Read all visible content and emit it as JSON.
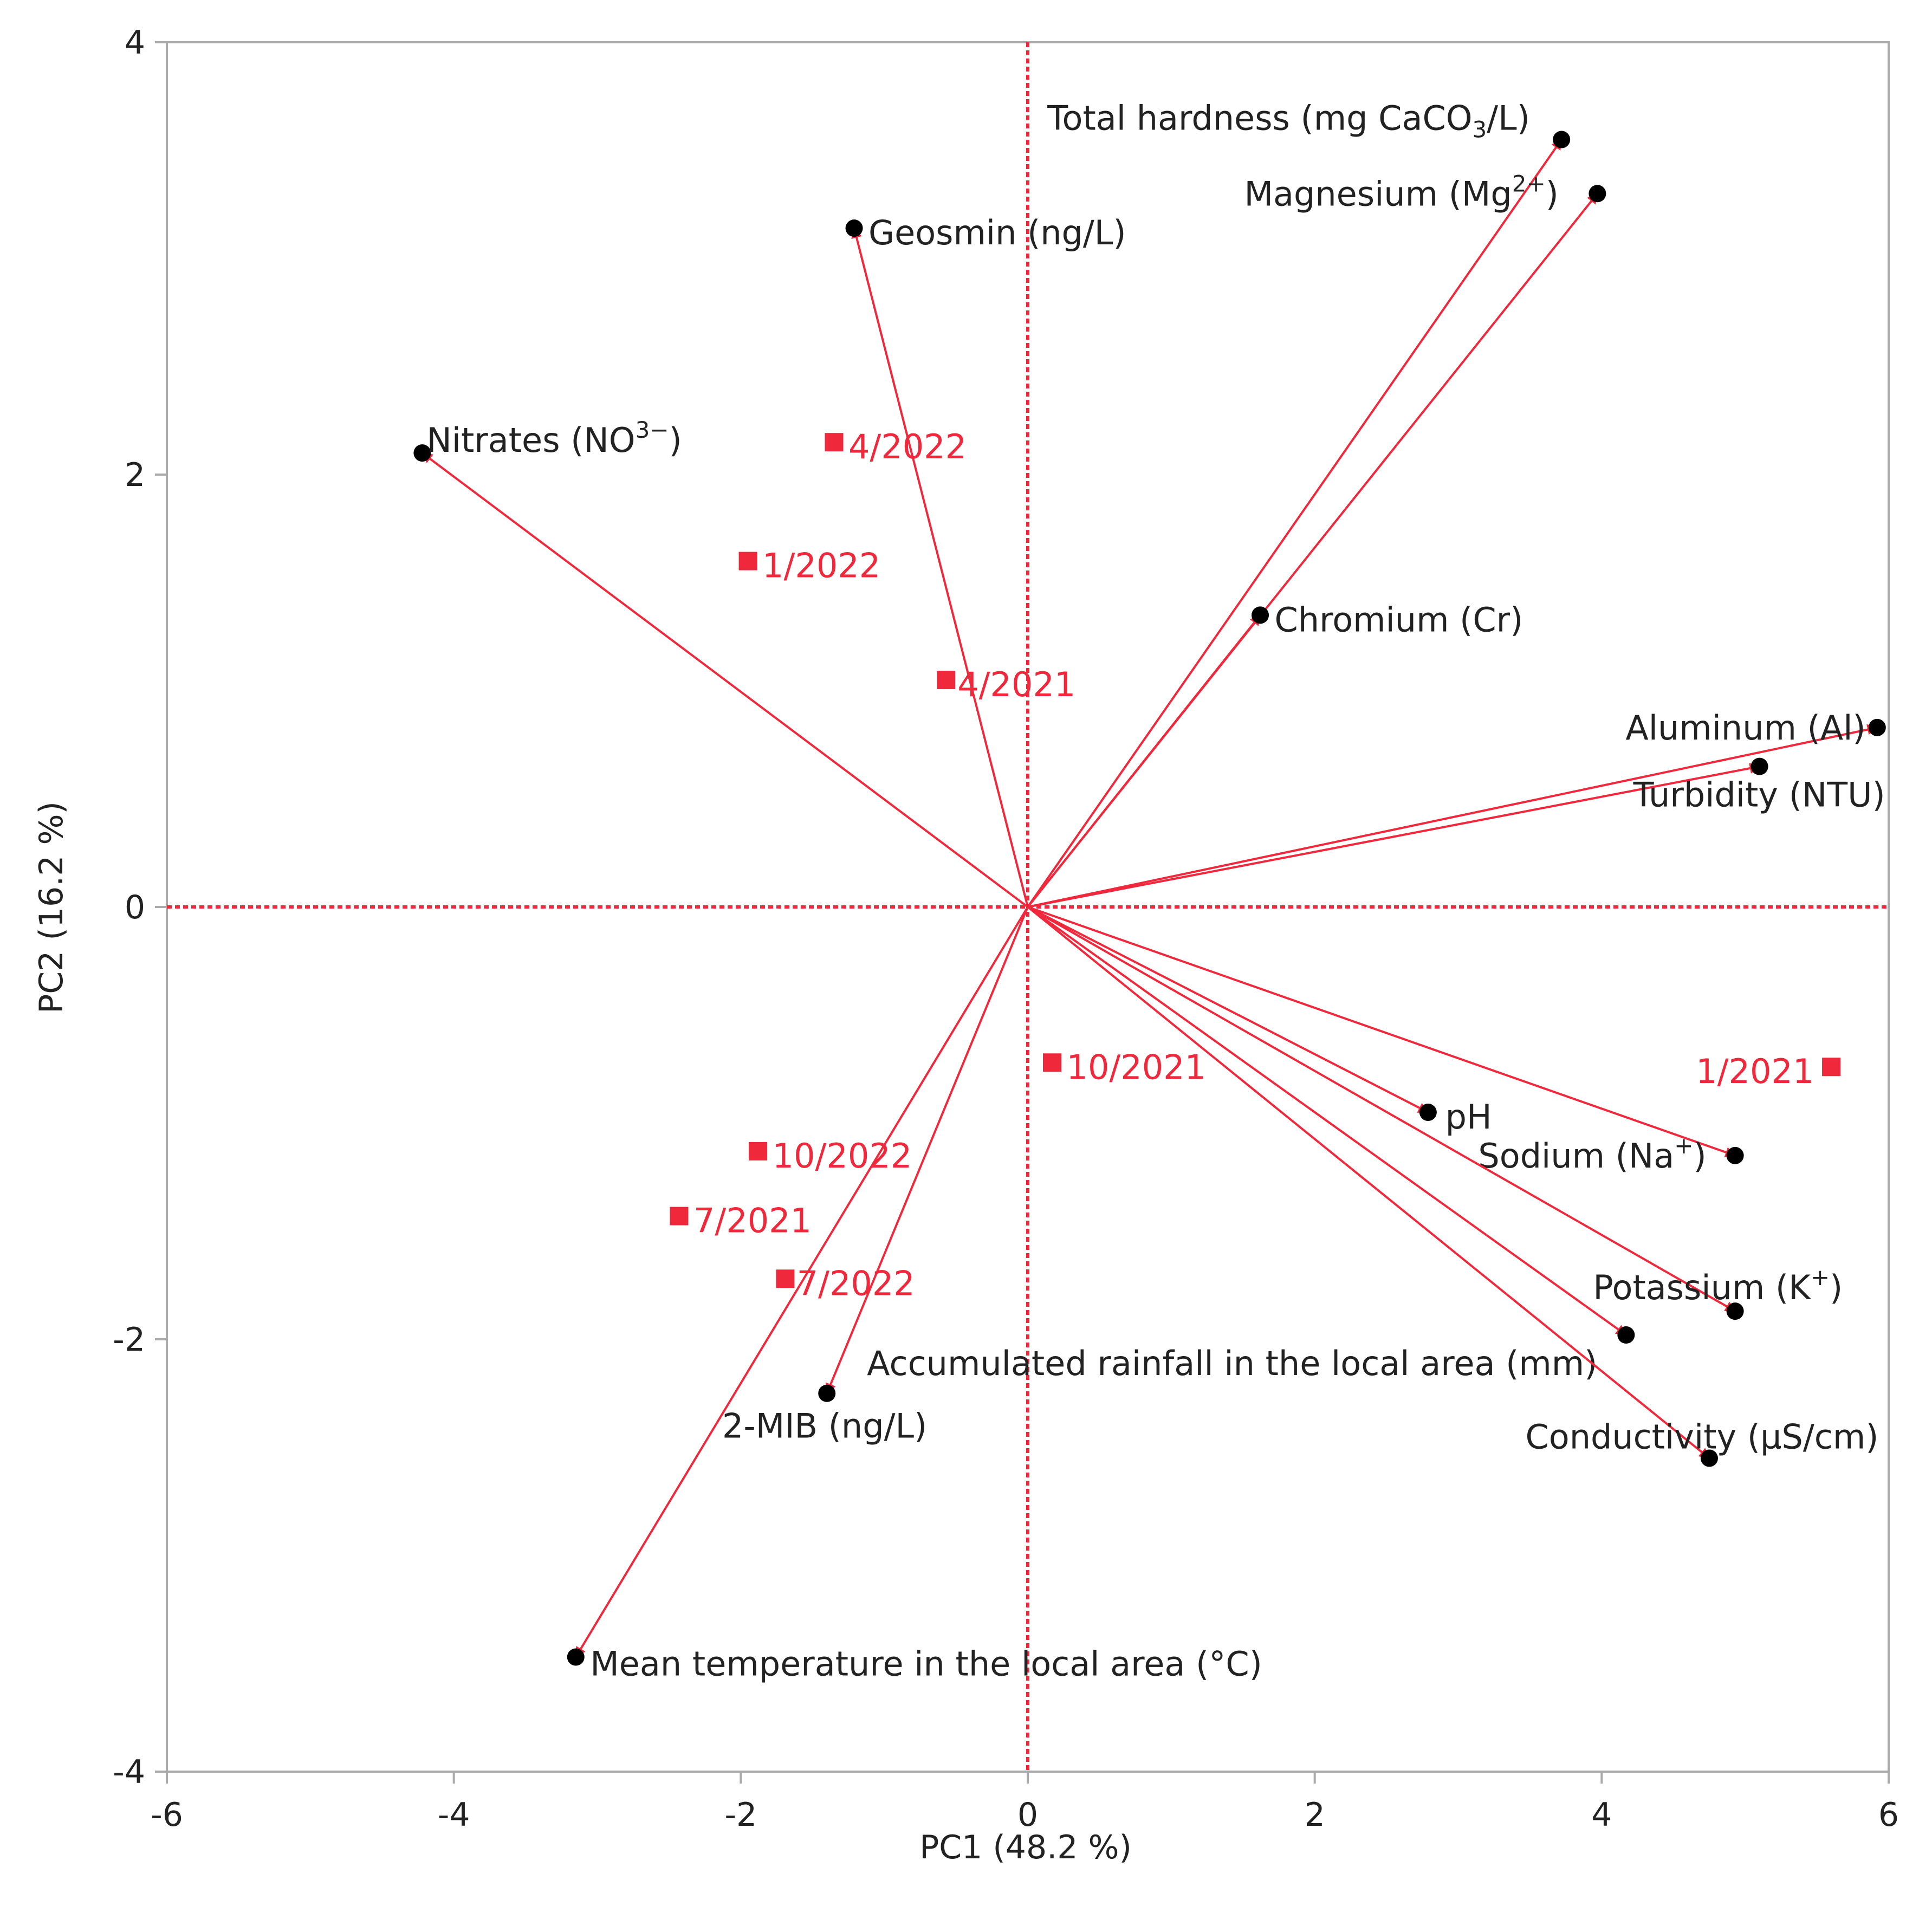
{
  "chart_data": {
    "type": "scatter",
    "subtype": "pca-biplot",
    "title": "",
    "xlabel": "PC1  (48.2 %)",
    "ylabel": "PC2  (16.2 %)",
    "xlim": [
      -6,
      6
    ],
    "ylim": [
      -4,
      4
    ],
    "xticks": [
      -6,
      -4,
      -2,
      0,
      2,
      4,
      6
    ],
    "yticks": [
      -4,
      -2,
      0,
      2,
      4
    ],
    "xtick_labels": [
      "-6",
      "-4",
      "-2",
      "0",
      "2",
      "4",
      "6"
    ],
    "ytick_labels": [
      "-4",
      "-2",
      "0",
      "2",
      "4"
    ],
    "colors": {
      "accent": "#f0283c",
      "point": "#000000",
      "axis": "#aaaaaa",
      "text": "#222222"
    },
    "loadings": [
      {
        "name": "Total hardness (mg CaCO3/L)",
        "x": 3.72,
        "y": 3.55,
        "label_anchor": "end",
        "label_dx": -0.22,
        "label_dy": 0.1
      },
      {
        "name": "Magnesium (Mg2+)",
        "x": 3.97,
        "y": 3.3,
        "label_anchor": "end",
        "label_dx": -0.27,
        "label_dy": 0.0
      },
      {
        "name": "Geosmin (ng/L)",
        "x": -1.21,
        "y": 3.14,
        "label_anchor": "start",
        "label_dx": 0.1,
        "label_dy": -0.02
      },
      {
        "name": "Nitrates (NO3−)",
        "x": -4.22,
        "y": 2.1,
        "label_anchor": "start",
        "label_dx": 0.03,
        "label_dy": 0.06
      },
      {
        "name": "Chromium (Cr)",
        "x": 1.62,
        "y": 1.35,
        "label_anchor": "start",
        "label_dx": 0.1,
        "label_dy": -0.02
      },
      {
        "name": "Aluminum (Al)",
        "x": 5.92,
        "y": 0.83,
        "label_anchor": "end",
        "label_dx": -0.08,
        "label_dy": 0.0
      },
      {
        "name": "Turbidity (NTU)",
        "x": 5.1,
        "y": 0.65,
        "label_anchor": "start",
        "label_dx": -0.88,
        "label_dy": -0.13
      },
      {
        "name": "pH",
        "x": 2.79,
        "y": -0.95,
        "label_anchor": "start",
        "label_dx": 0.12,
        "label_dy": -0.02
      },
      {
        "name": "Sodium (Na+)",
        "x": 4.93,
        "y": -1.15,
        "label_anchor": "end",
        "label_dx": -0.2,
        "label_dy": 0.0
      },
      {
        "name": "Potassium (K+)",
        "x": 4.93,
        "y": -1.87,
        "label_anchor": "end",
        "label_dx": 0.75,
        "label_dy": 0.11
      },
      {
        "name": "Accumulated rainfall in the local area (mm)",
        "x": 4.17,
        "y": -1.98,
        "label_anchor": "end",
        "label_dx": -0.2,
        "label_dy": -0.13
      },
      {
        "name": "2-MIB (ng/L)",
        "x": -1.4,
        "y": -2.25,
        "label_anchor": "start",
        "label_dx": -0.73,
        "label_dy": -0.15
      },
      {
        "name": "Conductivity (µS/cm)",
        "x": 4.75,
        "y": -2.55,
        "label_anchor": "end",
        "label_dx": 1.18,
        "label_dy": 0.1
      },
      {
        "name": "Mean temperature in the local area (°C)",
        "x": -3.15,
        "y": -3.47,
        "label_anchor": "start",
        "label_dx": 0.1,
        "label_dy": -0.03
      }
    ],
    "observations": [
      {
        "name": "4/2022",
        "x": -1.35,
        "y": 2.15,
        "label_anchor": "start",
        "label_dx": 0.1,
        "label_dy": -0.02
      },
      {
        "name": "1/2022",
        "x": -1.95,
        "y": 1.6,
        "label_anchor": "start",
        "label_dx": 0.1,
        "label_dy": -0.02
      },
      {
        "name": "4/2021",
        "x": -0.57,
        "y": 1.05,
        "label_anchor": "start",
        "label_dx": 0.08,
        "label_dy": -0.02
      },
      {
        "name": "10/2021",
        "x": 0.17,
        "y": -0.72,
        "label_anchor": "start",
        "label_dx": 0.1,
        "label_dy": -0.02
      },
      {
        "name": "1/2021",
        "x": 5.6,
        "y": -0.74,
        "label_anchor": "end",
        "label_dx": -0.12,
        "label_dy": -0.02
      },
      {
        "name": "10/2022",
        "x": -1.88,
        "y": -1.13,
        "label_anchor": "start",
        "label_dx": 0.1,
        "label_dy": -0.02
      },
      {
        "name": "7/2021",
        "x": -2.43,
        "y": -1.43,
        "label_anchor": "start",
        "label_dx": 0.1,
        "label_dy": -0.02
      },
      {
        "name": "7/2022",
        "x": -1.69,
        "y": -1.72,
        "label_anchor": "start",
        "label_dx": 0.08,
        "label_dy": -0.02
      }
    ]
  }
}
